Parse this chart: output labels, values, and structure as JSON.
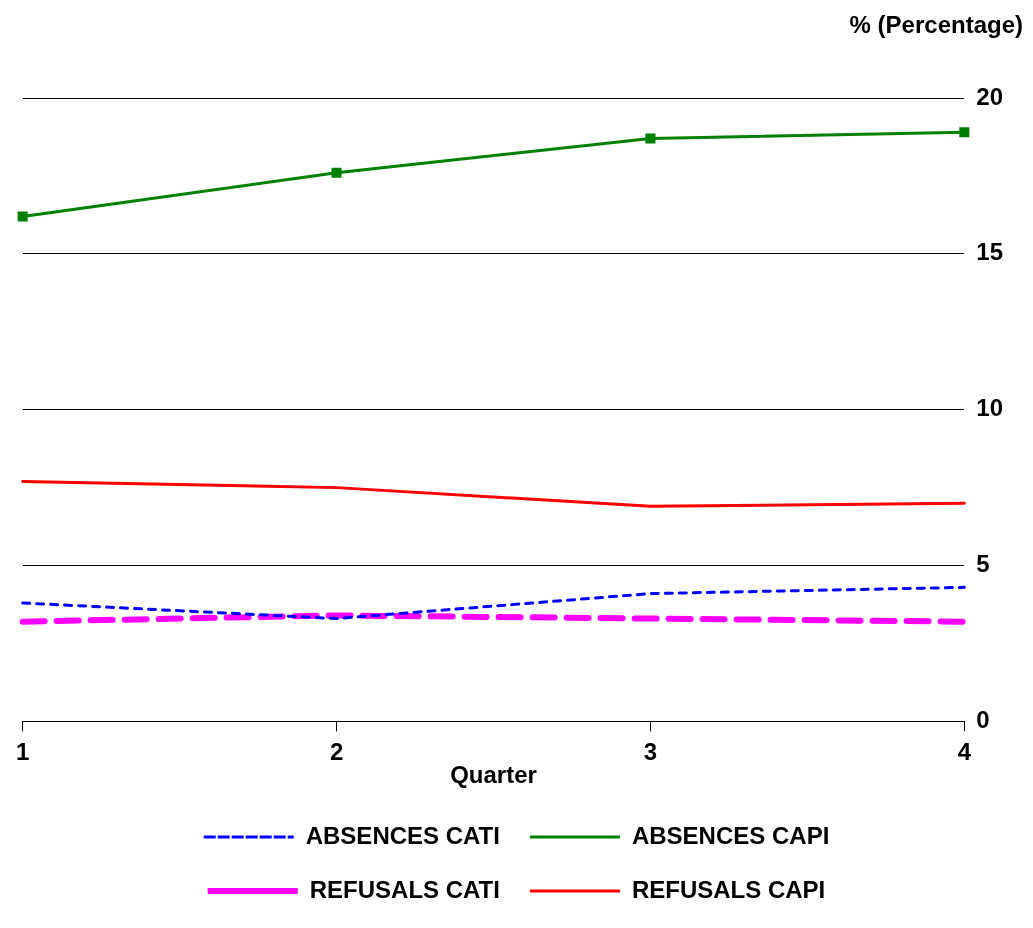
{
  "chart_data": {
    "type": "line",
    "xlabel": "Quarter",
    "ylabel": "% (Percentage)",
    "x": [
      1,
      2,
      3,
      4
    ],
    "xlim": [
      1,
      4
    ],
    "xticks": [
      1,
      2,
      3,
      4
    ],
    "ylim": [
      0,
      20
    ],
    "yticks": [
      0,
      5,
      10,
      15,
      20
    ],
    "grid": "y",
    "legend": "bottom",
    "series": [
      {
        "name": "ABSENCES CATI",
        "color": "#0000ff",
        "values": [
          3.8,
          3.3,
          4.1,
          4.3
        ],
        "line_style": "dotted",
        "marker": "none"
      },
      {
        "name": "ABSENCES CAPI",
        "color": "#008000",
        "values": [
          16.2,
          17.6,
          18.7,
          18.9
        ],
        "line_style": "solid",
        "marker": "square"
      },
      {
        "name": "REFUSALS CATI",
        "color": "#ff00ff",
        "values": [
          3.2,
          3.4,
          3.3,
          3.2
        ],
        "line_style": "dashed",
        "marker": "none"
      },
      {
        "name": "REFUSALS CAPI",
        "color": "#ff0000",
        "values": [
          7.7,
          7.5,
          6.9,
          7.0
        ],
        "line_style": "solid",
        "marker": "none"
      }
    ]
  }
}
